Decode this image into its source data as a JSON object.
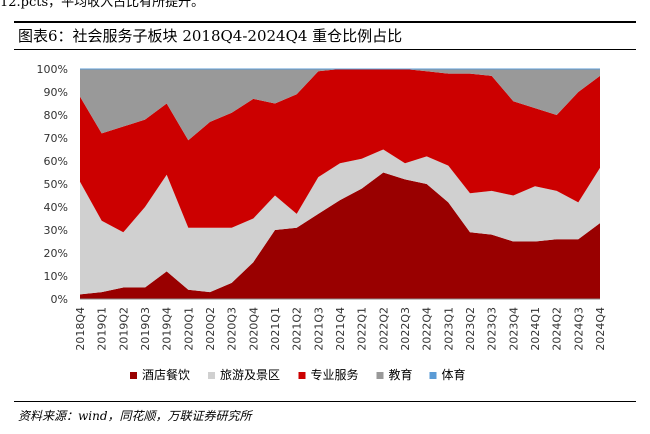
{
  "top_fragment": "12.pcts，平均收入占比有所提升。",
  "figure_title": "图表6：社会服务子板块 2018Q4-2024Q4 重仓比例占比",
  "source_note": "资料来源：wind，同花顺，万联证券研究所",
  "chart_data": {
    "type": "area",
    "stacked": true,
    "title": "图表6：社会服务子板块 2018Q4-2024Q4 重仓比例占比",
    "xlabel": "",
    "ylabel": "",
    "ylim": [
      0,
      100
    ],
    "y_tick_labels": [
      "0%",
      "10%",
      "20%",
      "30%",
      "40%",
      "50%",
      "60%",
      "70%",
      "80%",
      "90%",
      "100%"
    ],
    "categories": [
      "2018Q4",
      "2019Q1",
      "2019Q2",
      "2019Q3",
      "2019Q4",
      "2020Q1",
      "2020Q2",
      "2020Q3",
      "2020Q4",
      "2021Q1",
      "2021Q2",
      "2021Q3",
      "2021Q4",
      "2022Q1",
      "2022Q2",
      "2022Q3",
      "2022Q4",
      "2023Q1",
      "2023Q2",
      "2023Q3",
      "2023Q4",
      "2024Q1",
      "2024Q2",
      "2024Q3",
      "2024Q4"
    ],
    "legend_position": "bottom",
    "series": [
      {
        "name": "酒店餐饮",
        "color": "#990000",
        "values": [
          2,
          3,
          5,
          5,
          12,
          4,
          3,
          7,
          16,
          30,
          31,
          37,
          43,
          48,
          55,
          52,
          50,
          42,
          29,
          28,
          25,
          25,
          26,
          26,
          33
        ]
      },
      {
        "name": "旅游及景区",
        "color": "#d0d0d0",
        "values": [
          49,
          31,
          24,
          35,
          42,
          27,
          28,
          24,
          19,
          15,
          6,
          16,
          16,
          13,
          10,
          7,
          12,
          16,
          17,
          19,
          20,
          24,
          21,
          16,
          24
        ]
      },
      {
        "name": "专业服务",
        "color": "#cc0000",
        "values": [
          37,
          38,
          46,
          38,
          31,
          38,
          46,
          50,
          52,
          40,
          52,
          46,
          41,
          39,
          35,
          41,
          37,
          40,
          52,
          50,
          41,
          34,
          33,
          48,
          40
        ]
      },
      {
        "name": "教育",
        "color": "#999999",
        "values": [
          12,
          28,
          25,
          22,
          15,
          31,
          23,
          19,
          13,
          15,
          11,
          1,
          0,
          0,
          0,
          0,
          1,
          2,
          2,
          3,
          14,
          17,
          20,
          10,
          3
        ]
      },
      {
        "name": "体育",
        "color": "#5b9bd5",
        "values": [
          0,
          0,
          0,
          0,
          0,
          0,
          0,
          0,
          0,
          0,
          0,
          0,
          0,
          0,
          0,
          0,
          0,
          0,
          0,
          0,
          0,
          0,
          0,
          0,
          0
        ]
      }
    ]
  }
}
